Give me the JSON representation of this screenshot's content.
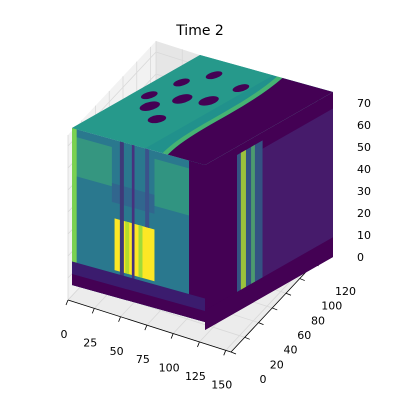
{
  "chart_data": {
    "type": "volume",
    "title": "Time 2",
    "xlim": [
      0,
      155
    ],
    "ylim": [
      0,
      128
    ],
    "zlim": [
      0,
      75
    ],
    "xticks": [
      0,
      25,
      50,
      75,
      100,
      125,
      150
    ],
    "yticks": [
      0,
      20,
      40,
      60,
      80,
      100,
      120
    ],
    "zticks": [
      0,
      10,
      20,
      30,
      40,
      50,
      60,
      70
    ],
    "grid": true
  }
}
